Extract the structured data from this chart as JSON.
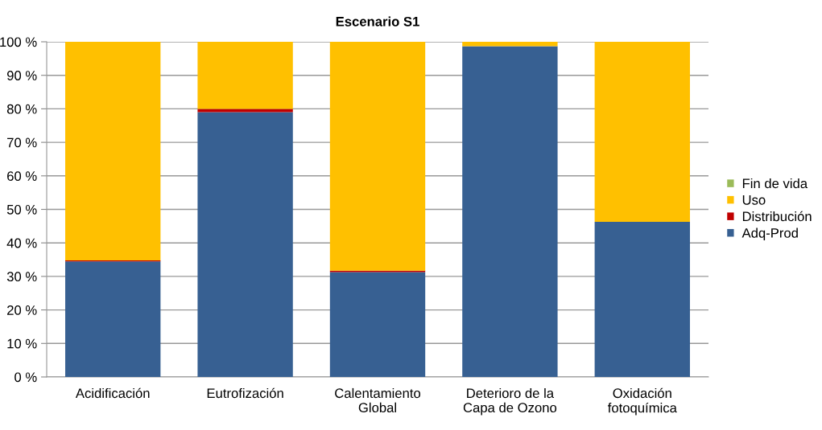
{
  "chart_data": {
    "type": "bar",
    "title": "Escenario S1",
    "stacked": true,
    "categories": [
      "Acidificación",
      "Eutrofización",
      "Calentamiento\nGlobal",
      "Deterioro de la\nCapa de Ozono",
      "Oxidación\nfotoquímica"
    ],
    "series": [
      {
        "name": "Adq-Prod",
        "color": "#376092",
        "values": [
          34.5,
          79.0,
          31.3,
          98.7,
          46.3
        ]
      },
      {
        "name": "Distribución",
        "color": "#c00000",
        "values": [
          0.3,
          1.0,
          0.4,
          0,
          0
        ]
      },
      {
        "name": "Uso",
        "color": "#ffc000",
        "values": [
          65.2,
          20.0,
          68.3,
          1.3,
          53.7
        ]
      },
      {
        "name": "Fin de vida",
        "color": "#9bbb59",
        "values": [
          0,
          0,
          0,
          0,
          0
        ]
      }
    ],
    "ylim": [
      0,
      100
    ],
    "yticks": [
      {
        "value": 0,
        "label": "0 %"
      },
      {
        "value": 10,
        "label": "10 %"
      },
      {
        "value": 20,
        "label": "20 %"
      },
      {
        "value": 30,
        "label": "30 %"
      },
      {
        "value": 40,
        "label": "40 %"
      },
      {
        "value": 50,
        "label": "50 %"
      },
      {
        "value": 60,
        "label": "60 %"
      },
      {
        "value": 70,
        "label": "70 %"
      },
      {
        "value": 80,
        "label": "80 %"
      },
      {
        "value": 90,
        "label": "90 %"
      },
      {
        "value": 100,
        "label": "100 %"
      }
    ],
    "grid": "y",
    "legend": "right"
  }
}
